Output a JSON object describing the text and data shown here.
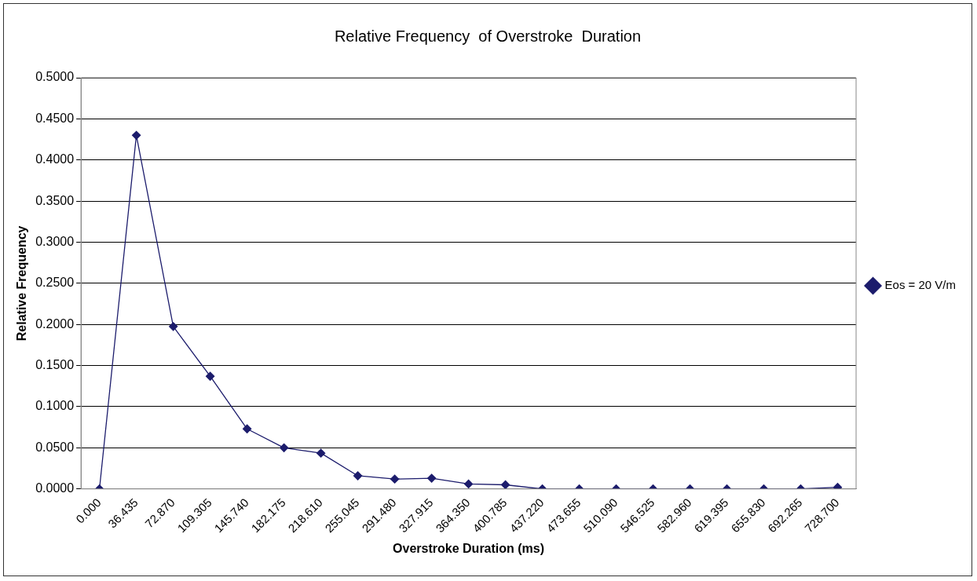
{
  "chart_data": {
    "type": "line",
    "title": "Relative Frequency  of Overstroke  Duration",
    "xlabel": "Overstroke Duration (ms)",
    "ylabel": "Relative Frequency",
    "categories": [
      "0.000",
      "36.435",
      "72.870",
      "109.305",
      "145.740",
      "182.175",
      "218.610",
      "255.045",
      "291.480",
      "327.915",
      "364.350",
      "400.785",
      "437.220",
      "473.655",
      "510.090",
      "546.525",
      "582.960",
      "619.395",
      "655.830",
      "692.265",
      "728.700"
    ],
    "series": [
      {
        "name": "Eos = 20 V/m",
        "color": "#1c1c6c",
        "values": [
          0.0,
          0.43,
          0.1975,
          0.137,
          0.073,
          0.05,
          0.0435,
          0.016,
          0.012,
          0.013,
          0.006,
          0.005,
          0.0,
          0.0,
          0.0,
          0.0,
          0.0,
          0.0,
          0.0,
          0.0,
          0.002
        ]
      }
    ],
    "ylim": [
      0,
      0.5
    ],
    "yticks": [
      {
        "value": 0,
        "label": "0.0000"
      },
      {
        "value": 0.05,
        "label": "0.0500"
      },
      {
        "value": 0.1,
        "label": "0.1000"
      },
      {
        "value": 0.15,
        "label": "0.1500"
      },
      {
        "value": 0.2,
        "label": "0.2000"
      },
      {
        "value": 0.25,
        "label": "0.2500"
      },
      {
        "value": 0.3,
        "label": "0.3000"
      },
      {
        "value": 0.35,
        "label": "0.3500"
      },
      {
        "value": 0.4,
        "label": "0.4000"
      },
      {
        "value": 0.45,
        "label": "0.4500"
      },
      {
        "value": 0.5,
        "label": "0.5000"
      }
    ],
    "grid": "y",
    "legend": "right",
    "marker": "diamond",
    "line_style": "solid"
  }
}
